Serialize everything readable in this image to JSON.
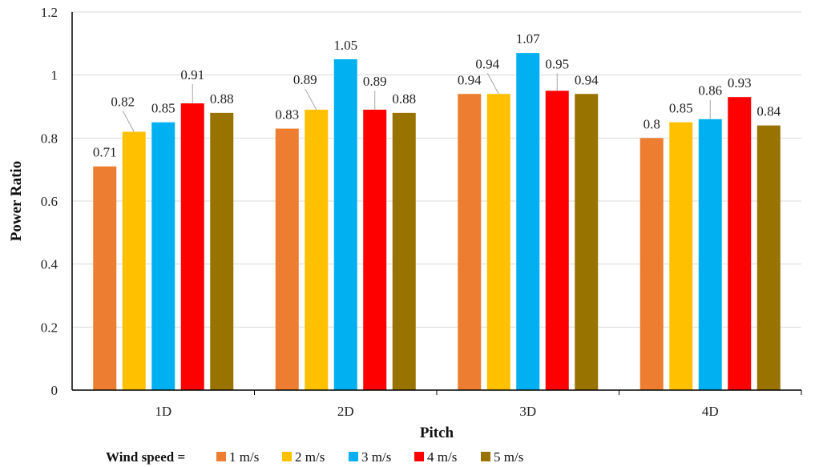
{
  "chart_data": {
    "type": "bar",
    "categories": [
      "1D",
      "2D",
      "3D",
      "4D"
    ],
    "series": [
      {
        "name": "1 m/s",
        "color": "#ED7D31",
        "values": [
          0.71,
          0.83,
          0.94,
          0.8
        ]
      },
      {
        "name": "2 m/s",
        "color": "#FFC000",
        "values": [
          0.82,
          0.89,
          0.94,
          0.85
        ]
      },
      {
        "name": "3 m/s",
        "color": "#00B0F0",
        "values": [
          0.85,
          1.05,
          1.07,
          0.86
        ]
      },
      {
        "name": "4 m/s",
        "color": "#FF0000",
        "values": [
          0.91,
          0.89,
          0.95,
          0.93
        ]
      },
      {
        "name": "5 m/s",
        "color": "#997300",
        "values": [
          0.88,
          0.88,
          0.94,
          0.84
        ]
      }
    ],
    "data_labels": [
      [
        "0.71",
        "0.82",
        "0.85",
        "0.91",
        "0.88"
      ],
      [
        "0.83",
        "0.89",
        "1.05",
        "0.89",
        "0.88"
      ],
      [
        "0.94",
        "0.94",
        "1.07",
        "0.95",
        "0.94"
      ],
      [
        "0.8",
        "0.85",
        "0.86",
        "0.93",
        "0.84"
      ]
    ],
    "xlabel": "Pitch",
    "ylabel": "Power Ratio",
    "ylim": [
      0,
      1.2
    ],
    "yticks": [
      "0",
      "0.2",
      "0.4",
      "0.6",
      "0.8",
      "1",
      "1.2"
    ],
    "grid": true,
    "legend": {
      "placement": "bottom",
      "prefix": "Wind speed ="
    }
  }
}
